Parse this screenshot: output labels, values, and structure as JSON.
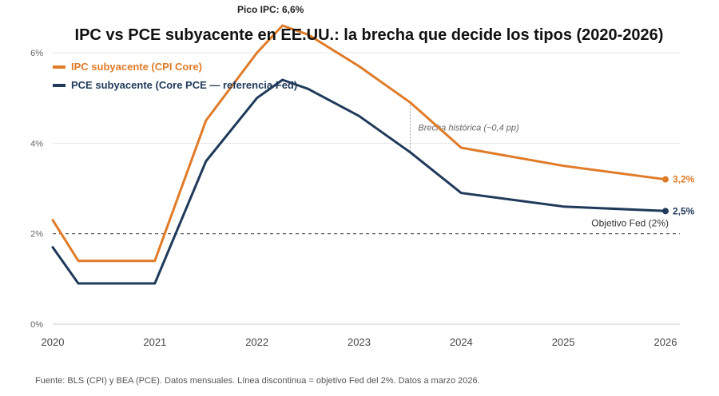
{
  "chart_data": {
    "type": "line",
    "title": "IPC vs PCE subyacente en EE.UU.: la brecha que decide los tipos (2020-2026)",
    "source": "Fuente: BLS (CPI) y BEA (PCE). Datos mensuales. Línea discontinua = objetivo Fed del 2%. Datos a marzo 2026.",
    "xlim": [
      2020,
      2026.1
    ],
    "ylim": [
      0,
      6.6
    ],
    "x_ticks": [
      {
        "value": 2020,
        "label": "2020"
      },
      {
        "value": 2021,
        "label": "2021"
      },
      {
        "value": 2022,
        "label": "2022"
      },
      {
        "value": 2023,
        "label": "2023"
      },
      {
        "value": 2024,
        "label": "2024"
      },
      {
        "value": 2025,
        "label": "2025"
      },
      {
        "value": 2026,
        "label": "2026"
      }
    ],
    "y_ticks": [
      {
        "value": 0,
        "label": "0%"
      },
      {
        "value": 2,
        "label": "2%"
      },
      {
        "value": 4,
        "label": "4%"
      },
      {
        "value": 6,
        "label": "6%"
      }
    ],
    "grid": true,
    "legend_position": "top-left",
    "series": [
      {
        "name": "IPC subyacente (CPI Core)",
        "color": "#e07b28",
        "x": [
          2020,
          2020.25,
          2021,
          2021.5,
          2022,
          2022.25,
          2022.5,
          2023,
          2023.5,
          2024,
          2025,
          2026
        ],
        "values": [
          2.3,
          1.4,
          1.4,
          4.5,
          6.0,
          6.6,
          6.4,
          5.7,
          4.9,
          3.9,
          3.5,
          3.2
        ],
        "end_label": "3,2%"
      },
      {
        "name": "PCE subyacente (Core PCE — referencia Fed)",
        "color": "#1f3a5a",
        "x": [
          2020,
          2020.25,
          2021,
          2021.5,
          2022,
          2022.25,
          2022.5,
          2023,
          2023.5,
          2024,
          2025,
          2026
        ],
        "values": [
          1.7,
          0.9,
          0.9,
          3.6,
          5.0,
          5.4,
          5.2,
          4.6,
          3.8,
          2.9,
          2.6,
          2.5
        ],
        "end_label": "2,5%"
      }
    ],
    "reference_line": {
      "value": 2,
      "label": "Objetivo Fed (2%)",
      "color": "#555555"
    },
    "annotations": [
      {
        "text": "Pico IPC: 6,6%",
        "x": 2022.25,
        "y": 6.6
      },
      {
        "text": "Brecha histórica (~0,4 pp)",
        "x": 2023.5,
        "y_from": 3.8,
        "y_to": 4.9
      }
    ]
  }
}
